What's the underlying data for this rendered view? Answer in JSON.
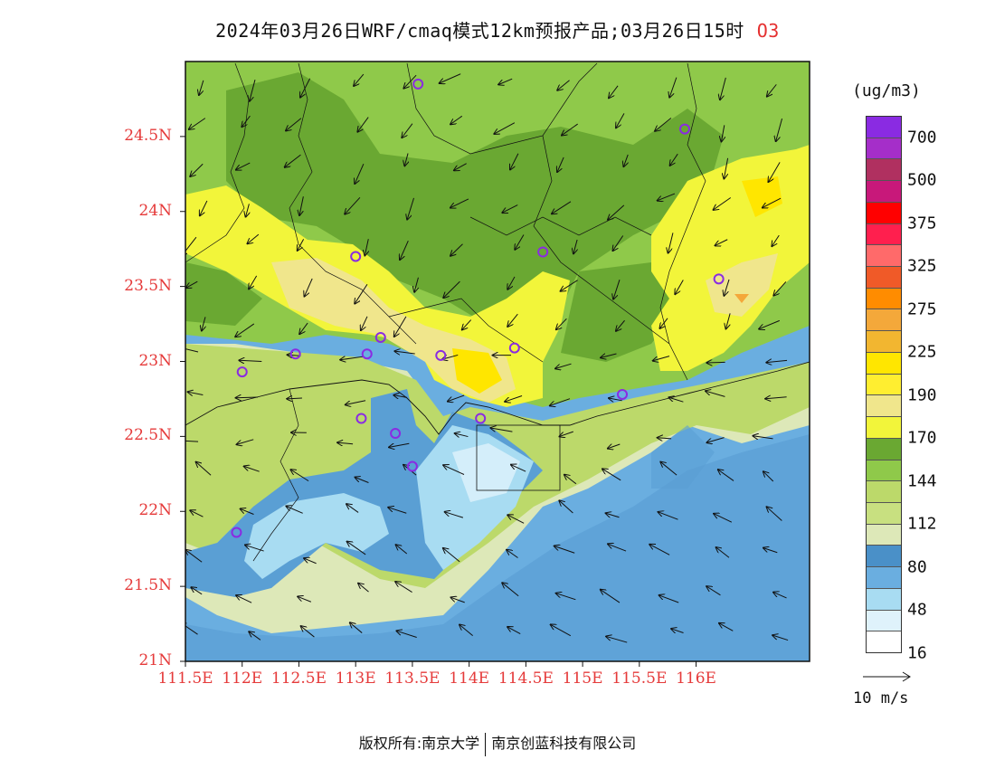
{
  "title": {
    "text": "2024年03月26日WRF/cmaq模式12km预报产品;03月26日15时",
    "species": "O3"
  },
  "axes": {
    "lat_labels": [
      "24.5N",
      "24N",
      "23.5N",
      "23N",
      "22.5N",
      "22N",
      "21.5N",
      "21N"
    ],
    "lat_values": [
      24.5,
      24.0,
      23.5,
      23.0,
      22.5,
      22.0,
      21.5,
      21.0
    ],
    "lon_labels": [
      "111.5E",
      "112E",
      "112.5E",
      "113E",
      "113.5E",
      "114E",
      "114.5E",
      "115E",
      "115.5E",
      "116E"
    ],
    "lon_values": [
      111.5,
      112.0,
      112.5,
      113.0,
      113.5,
      114.0,
      114.5,
      115.0,
      115.5,
      116.0
    ],
    "lon_range": [
      111.5,
      117.0
    ],
    "lat_range": [
      21.0,
      25.0
    ]
  },
  "colorbar": {
    "unit": "(ug/m3)",
    "labels": [
      "700",
      "500",
      "375",
      "325",
      "275",
      "225",
      "190",
      "170",
      "144",
      "112",
      "80",
      "48",
      "16"
    ],
    "colors_top_to_bottom": [
      "#8a2be2",
      "#a52ec9",
      "#b03060",
      "#c8187a",
      "#ff0000",
      "#ff1f4e",
      "#ff6a6a",
      "#f05a28",
      "#ff8c00",
      "#f4a83a",
      "#f2b630",
      "#ffe600",
      "#ffee30",
      "#f0e68c",
      "#f2f53a",
      "#6aa832",
      "#8fc94a",
      "#bcd96a",
      "#c8e080",
      "#dde8b8",
      "#4a90c8",
      "#6aaee0",
      "#a8dcf2",
      "#dff2fb",
      "#ffffff"
    ]
  },
  "reference_vector": {
    "label": "10 m/s"
  },
  "copyright": {
    "left": "版权所有:南京大学",
    "right": "南京创蓝科技有限公司"
  },
  "map_colors": {
    "sea_deep": "#5a9fd4",
    "sea_mid": "#6aaee0",
    "sea_light": "#a8dcf2",
    "sea_pale": "#d4eefa",
    "land_low": "#dde8b8",
    "land_112": "#bcd96a",
    "land_144": "#8fc94a",
    "land_dark": "#6aa832",
    "yellow_170": "#f2f53a",
    "yellow_180": "#f0e68c",
    "yellow_190": "#ffe600",
    "orange_225": "#f4a83a",
    "station_marker": "#8a2be2"
  },
  "stations_deg": [
    [
      113.55,
      24.85
    ],
    [
      115.9,
      24.55
    ],
    [
      113.0,
      23.7
    ],
    [
      114.65,
      23.73
    ],
    [
      116.2,
      23.55
    ],
    [
      112.47,
      23.05
    ],
    [
      113.1,
      23.05
    ],
    [
      113.22,
      23.16
    ],
    [
      113.75,
      23.04
    ],
    [
      114.4,
      23.09
    ],
    [
      112.0,
      22.93
    ],
    [
      113.05,
      22.62
    ],
    [
      113.35,
      22.52
    ],
    [
      114.1,
      22.62
    ],
    [
      115.35,
      22.78
    ],
    [
      113.5,
      22.3
    ],
    [
      111.95,
      21.86
    ]
  ]
}
